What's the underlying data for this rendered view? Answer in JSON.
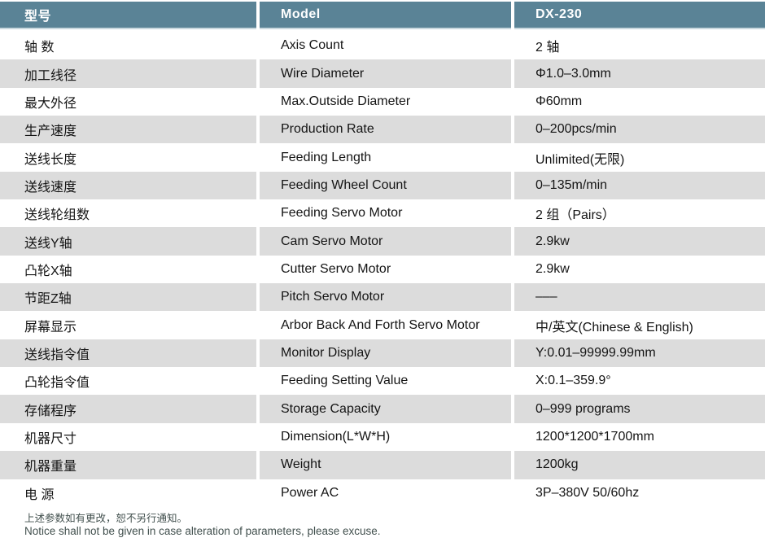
{
  "table": {
    "header": {
      "col1": "型号",
      "col2": "Model",
      "col3": "DX-230"
    },
    "rows": [
      {
        "cn": "轴  数",
        "en": "Axis Count",
        "value": "2 轴"
      },
      {
        "cn": "加工线径",
        "en": "Wire Diameter",
        "value": "Φ1.0–3.0mm"
      },
      {
        "cn": "最大外径",
        "en": "Max.Outside Diameter",
        "value": "Φ60mm"
      },
      {
        "cn": "生产速度",
        "en": "Production Rate",
        "value": "0–200pcs/min"
      },
      {
        "cn": "送线长度",
        "en": "Feeding Length",
        "value": "Unlimited(无限)"
      },
      {
        "cn": "送线速度",
        "en": "Feeding Wheel Count",
        "value": "0–135m/min"
      },
      {
        "cn": "送线轮组数",
        "en": "Feeding Servo Motor",
        "value": "2 组（Pairs）"
      },
      {
        "cn": "送线Y轴",
        "en": "Cam Servo Motor",
        "value": "2.9kw"
      },
      {
        "cn": "凸轮X轴",
        "en": "Cutter Servo Motor",
        "value": "2.9kw"
      },
      {
        "cn": "节距Z轴",
        "en": "Pitch Servo Motor",
        "value": "–––"
      },
      {
        "cn": "屏幕显示",
        "en": "Arbor Back And Forth Servo Motor",
        "value": "中/英文(Chinese & English)"
      },
      {
        "cn": "送线指令值",
        "en": "Monitor Display",
        "value": "Y:0.01–99999.99mm"
      },
      {
        "cn": "凸轮指令值",
        "en": "Feeding Setting Value",
        "value": "X:0.1–359.9°"
      },
      {
        "cn": "存储程序",
        "en": "Storage Capacity",
        "value": "0–999 programs"
      },
      {
        "cn": "机器尺寸",
        "en": "Dimension(L*W*H)",
        "value": "1200*1200*1700mm"
      },
      {
        "cn": "机器重量",
        "en": "Weight",
        "value": "1200kg"
      },
      {
        "cn": "电  源",
        "en": "Power AC",
        "value": "3P–380V 50/60hz"
      }
    ]
  },
  "footer": {
    "line1_cn": "上述参数如有更改，恕不另行通知。",
    "line2_en": "Notice shall not be given in case alteration of parameters, please excuse."
  },
  "colors": {
    "header_bg": "#5a8396",
    "header_accent": "#c9d8de",
    "stripe_bg": "#dcdcdc",
    "text": "#141414",
    "header_text": "#ffffff",
    "footer_text": "#42504e"
  }
}
